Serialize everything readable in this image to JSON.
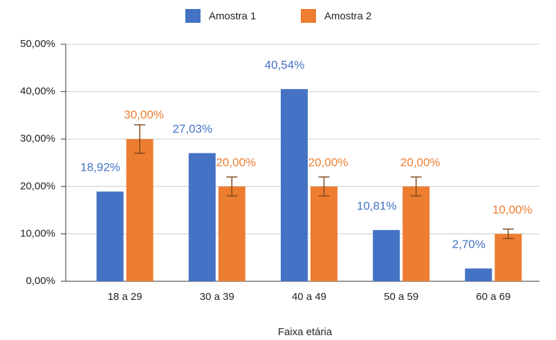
{
  "chart_data": {
    "type": "bar",
    "x_label": "Faixa etária",
    "categories": [
      "18 a 29",
      "30 a 39",
      "40 a 49",
      "50 a 59",
      "60 a 69"
    ],
    "series": [
      {
        "name": "Amostra 1",
        "color": "#4472c4",
        "values": [
          18.92,
          27.03,
          40.54,
          10.81,
          2.7
        ],
        "value_labels": [
          "18,92%",
          "27,03%",
          "40,54%",
          "10,81%",
          "2,70%"
        ]
      },
      {
        "name": "Amostra 2",
        "color": "#ed7d31",
        "values": [
          30,
          20,
          20,
          20,
          10
        ],
        "value_labels": [
          "30,00%",
          "20,00%",
          "20,00%",
          "20,00%",
          "10,00%"
        ],
        "errors": [
          3,
          2,
          2,
          2,
          1
        ],
        "error_color": "#7f4a1e"
      }
    ],
    "ylim": [
      0,
      50
    ],
    "yticks": [
      {
        "value": 0,
        "label": "0,00%"
      },
      {
        "value": 10,
        "label": "10,00%"
      },
      {
        "value": 20,
        "label": "20,00%"
      },
      {
        "value": 30,
        "label": "30,00%"
      },
      {
        "value": 40,
        "label": "40,00%"
      },
      {
        "value": 50,
        "label": "50,00%"
      }
    ],
    "grid": true,
    "legend": "top"
  }
}
